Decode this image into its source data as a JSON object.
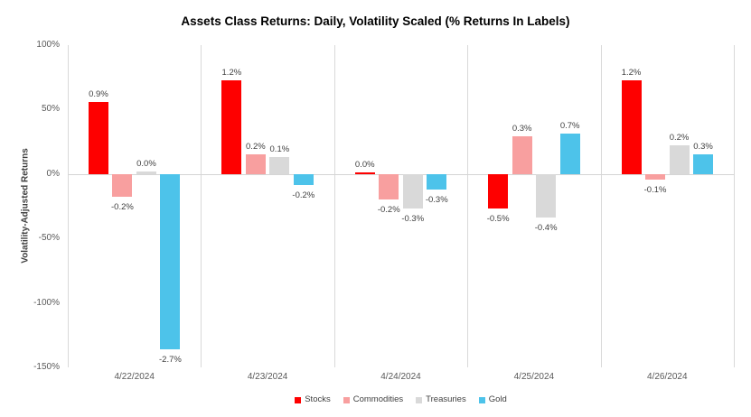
{
  "title": "Assets Class Returns: Daily, Volatility Scaled (% Returns In Labels)",
  "chart_data": {
    "type": "bar",
    "title": "Assets Class Returns: Daily, Volatility Scaled (% Returns In Labels)",
    "ylabel": "Volatility-Adjusted Returns",
    "xlabel": "",
    "ylim": [
      -150,
      100
    ],
    "grid": "vertical category separators and zero line only",
    "legend_position": "bottom",
    "y_ticks": [
      {
        "label": "100%",
        "value": 100
      },
      {
        "label": "50%",
        "value": 50
      },
      {
        "label": "0%",
        "value": 0
      },
      {
        "label": "-50%",
        "value": -50
      },
      {
        "label": "-100%",
        "value": -100
      },
      {
        "label": "-150%",
        "value": -150
      }
    ],
    "categories": [
      "4/22/2024",
      "4/23/2024",
      "4/24/2024",
      "4/25/2024",
      "4/26/2024"
    ],
    "series": [
      {
        "name": "Stocks",
        "color": "#fe0000",
        "raw_return_labels": [
          "0.9%",
          "1.2%",
          "0.0%",
          "-0.5%",
          "1.2%"
        ],
        "volatility_adjusted_values": [
          56,
          73,
          1.5,
          -27,
          73
        ]
      },
      {
        "name": "Commodities",
        "color": "#f89f9f",
        "raw_return_labels": [
          "-0.2%",
          "0.2%",
          "-0.2%",
          "0.3%",
          "-0.1%"
        ],
        "volatility_adjusted_values": [
          -17.5,
          15,
          -20,
          29,
          -4
        ]
      },
      {
        "name": "Treasuries",
        "color": "#d9d9d9",
        "raw_return_labels": [
          "0.0%",
          "0.1%",
          "-0.3%",
          "-0.4%",
          "0.2%"
        ],
        "volatility_adjusted_values": [
          2,
          13,
          -27,
          -34,
          22
        ]
      },
      {
        "name": "Gold",
        "color": "#4dc3ea",
        "raw_return_labels": [
          "-2.7%",
          "-0.2%",
          "-0.3%",
          "0.7%",
          "0.3%"
        ],
        "volatility_adjusted_values": [
          -136,
          -8.5,
          -12,
          31.5,
          15
        ]
      }
    ],
    "colors": {
      "stocks": "#fe0000",
      "commodities": "#f89f9f",
      "treasuries": "#d9d9d9",
      "gold": "#4dc3ea",
      "gridline": "#d9d9d9",
      "axis_text": "#595959",
      "data_label_text": "#3f3f3f",
      "title_text": "#000000"
    }
  }
}
